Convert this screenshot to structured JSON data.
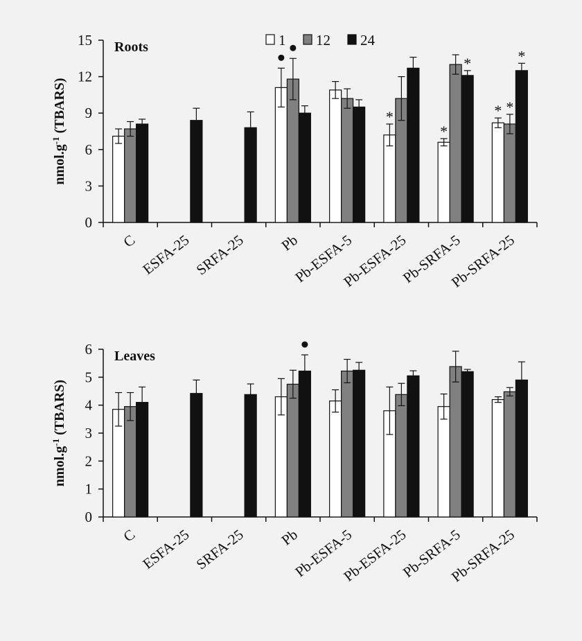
{
  "chart_data": [
    {
      "type": "bar",
      "title": "Roots",
      "ylabel": "nmol.g-1 (TBARS)",
      "ylabel_main": "nmol.g",
      "ylabel_sup": "-1",
      "ylabel_rest": " (TBARS)",
      "ylim": [
        0,
        15
      ],
      "yticks": [
        "0",
        "3",
        "6",
        "9",
        "12",
        "15"
      ],
      "grid": false,
      "legend_position": "top-center",
      "categories": [
        "C",
        "ESFA-25",
        "SRFA-25",
        "Pb",
        "Pb-ESFA-5",
        "Pb-ESFA-25",
        "Pb-SRFA-5",
        "Pb-SRFA-25"
      ],
      "series": [
        {
          "name": "1",
          "color": "#ffffff",
          "values": [
            7.1,
            null,
            null,
            11.1,
            10.9,
            7.2,
            6.6,
            8.2
          ],
          "errors": [
            0.6,
            null,
            null,
            1.6,
            0.7,
            0.9,
            0.3,
            0.4
          ],
          "markers": [
            "",
            "",
            "",
            "dot",
            "",
            "*",
            "*",
            "*"
          ]
        },
        {
          "name": "12",
          "color": "#808080",
          "values": [
            7.7,
            null,
            null,
            11.8,
            10.2,
            10.2,
            13.0,
            8.1
          ],
          "errors": [
            0.6,
            null,
            null,
            1.7,
            0.8,
            1.8,
            0.8,
            0.8
          ],
          "markers": [
            "",
            "",
            "",
            "dot",
            "",
            "",
            "",
            "*"
          ]
        },
        {
          "name": "24",
          "color": "#111111",
          "values": [
            8.1,
            8.4,
            7.8,
            9.0,
            9.5,
            12.7,
            12.1,
            12.5
          ],
          "errors": [
            0.4,
            1.0,
            1.3,
            0.6,
            0.6,
            0.9,
            0.4,
            0.6
          ],
          "markers": [
            "",
            "",
            "",
            "",
            "",
            "",
            "*",
            "*"
          ]
        }
      ]
    },
    {
      "type": "bar",
      "title": "Leaves",
      "ylabel": "nmol.g-1 (TBARS)",
      "ylabel_main": "nmol.g",
      "ylabel_sup": "-1",
      "ylabel_rest": " (TBARS)",
      "ylim": [
        0,
        6
      ],
      "yticks": [
        "0",
        "1",
        "2",
        "3",
        "4",
        "5",
        "6"
      ],
      "grid": false,
      "categories": [
        "C",
        "ESFA-25",
        "SRFA-25",
        "Pb",
        "Pb-ESFA-5",
        "Pb-ESFA-25",
        "Pb-SRFA-5",
        "Pb-SRFA-25"
      ],
      "series": [
        {
          "name": "1",
          "color": "#ffffff",
          "values": [
            3.85,
            null,
            null,
            4.3,
            4.15,
            3.8,
            3.95,
            4.2
          ],
          "errors": [
            0.6,
            null,
            null,
            0.65,
            0.4,
            0.85,
            0.45,
            0.1
          ],
          "markers": [
            "",
            "",
            "",
            "",
            "",
            "",
            "",
            ""
          ]
        },
        {
          "name": "12",
          "color": "#808080",
          "values": [
            3.95,
            null,
            null,
            4.75,
            5.22,
            4.38,
            5.38,
            4.48
          ],
          "errors": [
            0.5,
            null,
            null,
            0.5,
            0.42,
            0.4,
            0.55,
            0.15
          ],
          "markers": [
            "",
            "",
            "",
            "",
            "",
            "",
            "",
            ""
          ]
        },
        {
          "name": "24",
          "color": "#111111",
          "values": [
            4.1,
            4.42,
            4.38,
            5.22,
            5.25,
            5.05,
            5.2,
            4.9
          ],
          "errors": [
            0.55,
            0.48,
            0.38,
            0.58,
            0.28,
            0.18,
            0.08,
            0.65
          ],
          "markers": [
            "",
            "",
            "",
            "dot",
            "",
            "",
            "",
            ""
          ]
        }
      ]
    }
  ]
}
